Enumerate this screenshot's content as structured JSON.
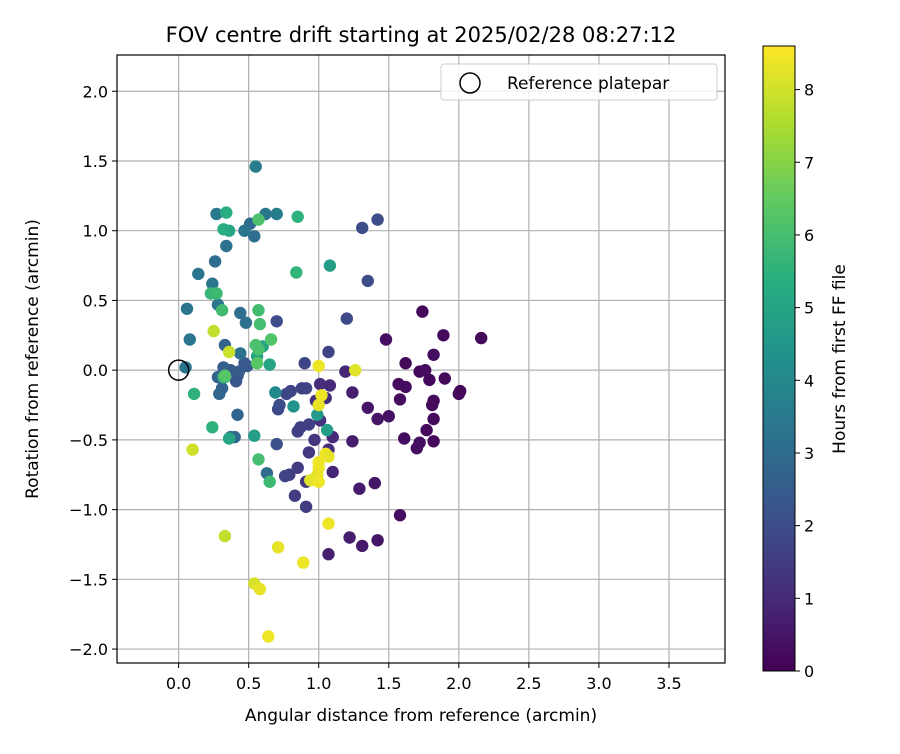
{
  "chart_data": {
    "type": "scatter",
    "title": "FOV centre drift starting at 2025/02/28 08:27:12",
    "xlabel": "Angular distance from reference (arcmin)",
    "ylabel": "Rotation from reference (arcmin)",
    "xlim": [
      -0.44,
      3.9
    ],
    "ylim": [
      -2.1,
      2.26
    ],
    "xticks": [
      "0.0",
      "0.5",
      "1.0",
      "1.5",
      "2.0",
      "2.5",
      "3.0",
      "3.5"
    ],
    "yticks": [
      "−2.0",
      "−1.5",
      "−1.0",
      "−0.5",
      "0.0",
      "0.5",
      "1.0",
      "1.5",
      "2.0"
    ],
    "grid": true,
    "legend": {
      "position": "top-right",
      "label": "Reference platepar"
    },
    "reference_point": {
      "x": 0.0,
      "y": 0.0
    },
    "colorbar": {
      "label": "Hours from first FF file",
      "min": 0,
      "max": 8.6,
      "ticks": [
        "0",
        "1",
        "2",
        "3",
        "4",
        "5",
        "6",
        "7",
        "8"
      ],
      "colormap": "viridis"
    },
    "points": [
      [
        2.16,
        0.23,
        0.2
      ],
      [
        1.74,
        0.42,
        0.2
      ],
      [
        1.89,
        0.25,
        0.2
      ],
      [
        1.48,
        0.22,
        0.3
      ],
      [
        1.62,
        0.05,
        0.2
      ],
      [
        1.82,
        0.11,
        0.3
      ],
      [
        1.72,
        -0.01,
        0.2
      ],
      [
        1.76,
        0.0,
        0.3
      ],
      [
        1.79,
        -0.07,
        0.2
      ],
      [
        1.9,
        -0.06,
        0.2
      ],
      [
        2.01,
        -0.15,
        0.2
      ],
      [
        2.0,
        -0.17,
        0.2
      ],
      [
        1.57,
        -0.1,
        0.3
      ],
      [
        1.62,
        -0.12,
        0.3
      ],
      [
        1.58,
        -0.21,
        0.3
      ],
      [
        1.82,
        -0.22,
        0.2
      ],
      [
        1.81,
        -0.25,
        0.2
      ],
      [
        1.82,
        -0.35,
        0.2
      ],
      [
        1.35,
        -0.27,
        0.5
      ],
      [
        1.5,
        -0.33,
        0.4
      ],
      [
        1.42,
        -0.35,
        0.5
      ],
      [
        1.77,
        -0.43,
        0.2
      ],
      [
        1.61,
        -0.49,
        0.3
      ],
      [
        1.72,
        -0.52,
        0.3
      ],
      [
        1.7,
        -0.56,
        0.3
      ],
      [
        1.82,
        -0.51,
        0.2
      ],
      [
        1.58,
        -1.04,
        0.3
      ],
      [
        1.4,
        -0.81,
        0.5
      ],
      [
        1.29,
        -0.85,
        0.6
      ],
      [
        1.22,
        -1.2,
        0.7
      ],
      [
        1.42,
        -1.22,
        0.5
      ],
      [
        1.31,
        -1.26,
        0.6
      ],
      [
        1.07,
        -1.32,
        0.8
      ],
      [
        1.1,
        -0.73,
        0.9
      ],
      [
        1.24,
        -0.51,
        0.7
      ],
      [
        1.24,
        -0.16,
        0.7
      ],
      [
        1.19,
        -0.01,
        0.9
      ],
      [
        1.08,
        -0.11,
        1.0
      ],
      [
        1.01,
        -0.1,
        1.1
      ],
      [
        0.98,
        -0.22,
        1.2
      ],
      [
        1.05,
        -0.2,
        1.1
      ],
      [
        1.01,
        -0.36,
        1.2
      ],
      [
        1.1,
        -0.48,
        1.0
      ],
      [
        1.07,
        -0.57,
        1.1
      ],
      [
        0.93,
        -0.59,
        1.4
      ],
      [
        0.91,
        -0.8,
        1.4
      ],
      [
        0.83,
        -0.9,
        1.5
      ],
      [
        0.91,
        -0.98,
        1.5
      ],
      [
        0.85,
        -0.7,
        1.5
      ],
      [
        0.97,
        -0.5,
        1.3
      ],
      [
        0.79,
        -0.75,
        1.6
      ],
      [
        0.76,
        -0.76,
        1.7
      ],
      [
        0.8,
        -0.15,
        1.7
      ],
      [
        0.85,
        -0.44,
        1.6
      ],
      [
        0.87,
        -0.41,
        1.6
      ],
      [
        0.88,
        -0.13,
        1.7
      ],
      [
        0.91,
        -0.13,
        1.7
      ],
      [
        0.93,
        -0.39,
        1.6
      ],
      [
        0.9,
        0.05,
        1.8
      ],
      [
        1.07,
        0.13,
        1.7
      ],
      [
        0.77,
        -0.17,
        1.8
      ],
      [
        0.71,
        -0.28,
        1.9
      ],
      [
        0.7,
        -0.53,
        2.1
      ],
      [
        0.7,
        0.35,
        2.0
      ],
      [
        1.2,
        0.37,
        1.9
      ],
      [
        1.35,
        0.64,
        2.0
      ],
      [
        1.42,
        1.08,
        2.0
      ],
      [
        1.31,
        1.02,
        2.0
      ],
      [
        0.72,
        -0.25,
        2.0
      ],
      [
        0.41,
        -0.08,
        2.3
      ],
      [
        0.37,
        0.0,
        2.4
      ],
      [
        0.42,
        -0.04,
        2.3
      ],
      [
        0.47,
        0.05,
        2.4
      ],
      [
        0.49,
        0.03,
        2.4
      ],
      [
        0.43,
        -0.01,
        2.5
      ],
      [
        0.32,
        0.02,
        2.6
      ],
      [
        0.28,
        -0.05,
        2.7
      ],
      [
        0.31,
        -0.13,
        2.7
      ],
      [
        0.29,
        -0.17,
        2.8
      ],
      [
        0.33,
        0.18,
        2.7
      ],
      [
        0.42,
        -0.32,
        2.8
      ],
      [
        0.37,
        -0.48,
        2.9
      ],
      [
        0.4,
        -0.48,
        2.9
      ],
      [
        0.63,
        -0.74,
        3.0
      ],
      [
        0.44,
        0.41,
        3.1
      ],
      [
        0.48,
        0.34,
        3.1
      ],
      [
        0.44,
        0.12,
        3.2
      ],
      [
        0.51,
        1.05,
        3.0
      ],
      [
        0.54,
        0.96,
        3.1
      ],
      [
        0.47,
        1.0,
        3.3
      ],
      [
        0.34,
        0.89,
        3.2
      ],
      [
        0.26,
        0.78,
        3.1
      ],
      [
        0.24,
        0.62,
        3.3
      ],
      [
        0.14,
        0.69,
        3.3
      ],
      [
        0.06,
        0.44,
        3.3
      ],
      [
        0.08,
        0.22,
        3.3
      ],
      [
        0.05,
        0.02,
        3.3
      ],
      [
        0.28,
        0.47,
        3.4
      ],
      [
        0.62,
        1.12,
        3.4
      ],
      [
        0.7,
        1.12,
        3.6
      ],
      [
        0.27,
        1.12,
        3.5
      ],
      [
        0.55,
        1.46,
        3.6
      ],
      [
        0.69,
        -0.16,
        4.0
      ],
      [
        0.82,
        -0.26,
        4.4
      ],
      [
        0.99,
        -0.32,
        4.6
      ],
      [
        1.06,
        -0.43,
        4.8
      ],
      [
        1.08,
        0.75,
        4.8
      ],
      [
        0.54,
        -0.47,
        4.8
      ],
      [
        0.36,
        -0.49,
        5.0
      ],
      [
        0.65,
        0.04,
        5.0
      ],
      [
        0.6,
        0.17,
        5.0
      ],
      [
        0.56,
        0.1,
        5.0
      ],
      [
        0.36,
        1.0,
        5.1
      ],
      [
        0.32,
        1.01,
        5.3
      ],
      [
        0.34,
        1.13,
        5.3
      ],
      [
        0.85,
        1.1,
        5.5
      ],
      [
        0.84,
        0.7,
        5.6
      ],
      [
        0.33,
        -0.05,
        5.6
      ],
      [
        0.32,
        -0.05,
        5.6
      ],
      [
        0.11,
        -0.17,
        5.5
      ],
      [
        0.24,
        -0.41,
        5.5
      ],
      [
        0.23,
        0.55,
        5.7
      ],
      [
        0.27,
        0.55,
        5.8
      ],
      [
        0.31,
        0.43,
        5.9
      ],
      [
        0.57,
        0.43,
        5.9
      ],
      [
        0.58,
        0.33,
        6.0
      ],
      [
        0.55,
        0.18,
        6.1
      ],
      [
        0.57,
        0.15,
        6.1
      ],
      [
        0.66,
        0.22,
        6.2
      ],
      [
        0.56,
        0.05,
        6.3
      ],
      [
        0.65,
        -0.8,
        5.8
      ],
      [
        0.57,
        -0.64,
        6.0
      ],
      [
        0.57,
        1.08,
        6.1
      ],
      [
        0.33,
        -0.04,
        6.3
      ],
      [
        0.25,
        0.28,
        7.8
      ],
      [
        0.36,
        0.13,
        7.9
      ],
      [
        1.26,
        0.0,
        8.2
      ],
      [
        1.0,
        0.03,
        8.4
      ],
      [
        1.02,
        -0.18,
        8.4
      ],
      [
        1.0,
        -0.25,
        8.3
      ],
      [
        1.05,
        -0.6,
        8.4
      ],
      [
        1.07,
        -0.62,
        8.3
      ],
      [
        1.0,
        -0.66,
        8.4
      ],
      [
        1.0,
        -0.7,
        8.4
      ],
      [
        0.99,
        -0.75,
        8.3
      ],
      [
        0.94,
        -0.79,
        8.2
      ],
      [
        1.0,
        -0.8,
        8.4
      ],
      [
        0.1,
        -0.57,
        8.0
      ],
      [
        0.33,
        -1.19,
        7.8
      ],
      [
        1.07,
        -1.1,
        8.4
      ],
      [
        0.71,
        -1.27,
        8.3
      ],
      [
        0.89,
        -1.38,
        8.4
      ],
      [
        0.54,
        -1.53,
        8.1
      ],
      [
        0.58,
        -1.57,
        8.3
      ],
      [
        0.64,
        -1.91,
        8.4
      ]
    ]
  }
}
